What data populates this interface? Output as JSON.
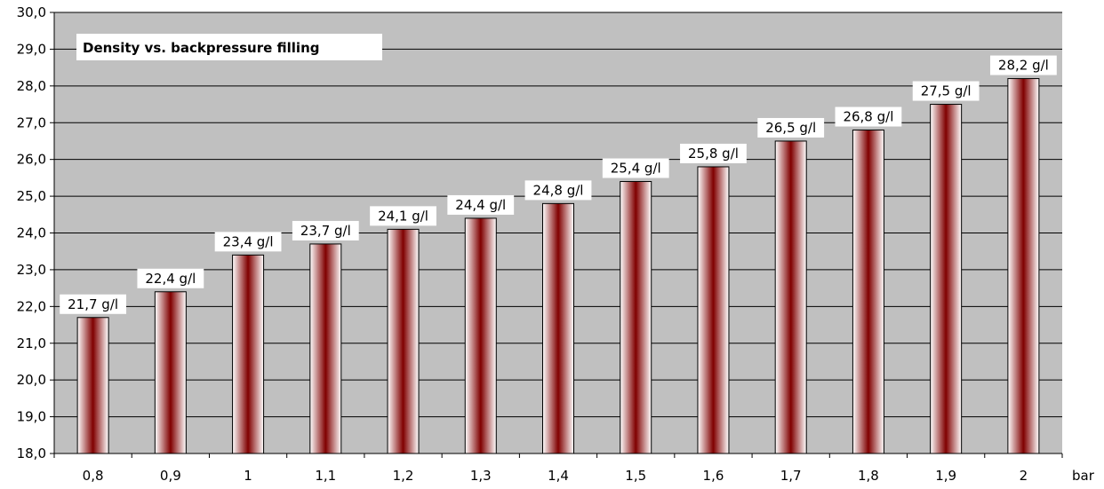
{
  "chart_data": {
    "type": "bar",
    "title": "Density vs. backpressure filling",
    "xlabel": "",
    "x_unit": "bar",
    "ylabel": "",
    "ylim": [
      18.0,
      30.0
    ],
    "ytick_step": 1.0,
    "yticks": [
      "18,0",
      "19,0",
      "20,0",
      "21,0",
      "22,0",
      "23,0",
      "24,0",
      "25,0",
      "26,0",
      "27,0",
      "28,0",
      "29,0",
      "30,0"
    ],
    "categories": [
      "0,8",
      "0,9",
      "1",
      "1,1",
      "1,2",
      "1,3",
      "1,4",
      "1,5",
      "1,6",
      "1,7",
      "1,8",
      "1,9",
      "2"
    ],
    "values": [
      21.7,
      22.4,
      23.4,
      23.7,
      24.1,
      24.4,
      24.8,
      25.4,
      25.8,
      26.5,
      26.8,
      27.5,
      28.2
    ],
    "data_labels": [
      "21,7 g/l",
      "22,4 g/l",
      "23,4 g/l",
      "23,7 g/l",
      "24,1 g/l",
      "24,4 g/l",
      "24,8 g/l",
      "25,4 g/l",
      "25,8 g/l",
      "26,5 g/l",
      "26,8 g/l",
      "27,5 g/l",
      "28,2 g/l"
    ],
    "grid": true,
    "legend": "none",
    "colors": {
      "plot_background": "#c0c0c0",
      "gridline": "#000000",
      "bar_center": "#800000",
      "bar_edge": "#ffffff",
      "label_background": "#ffffff"
    }
  }
}
